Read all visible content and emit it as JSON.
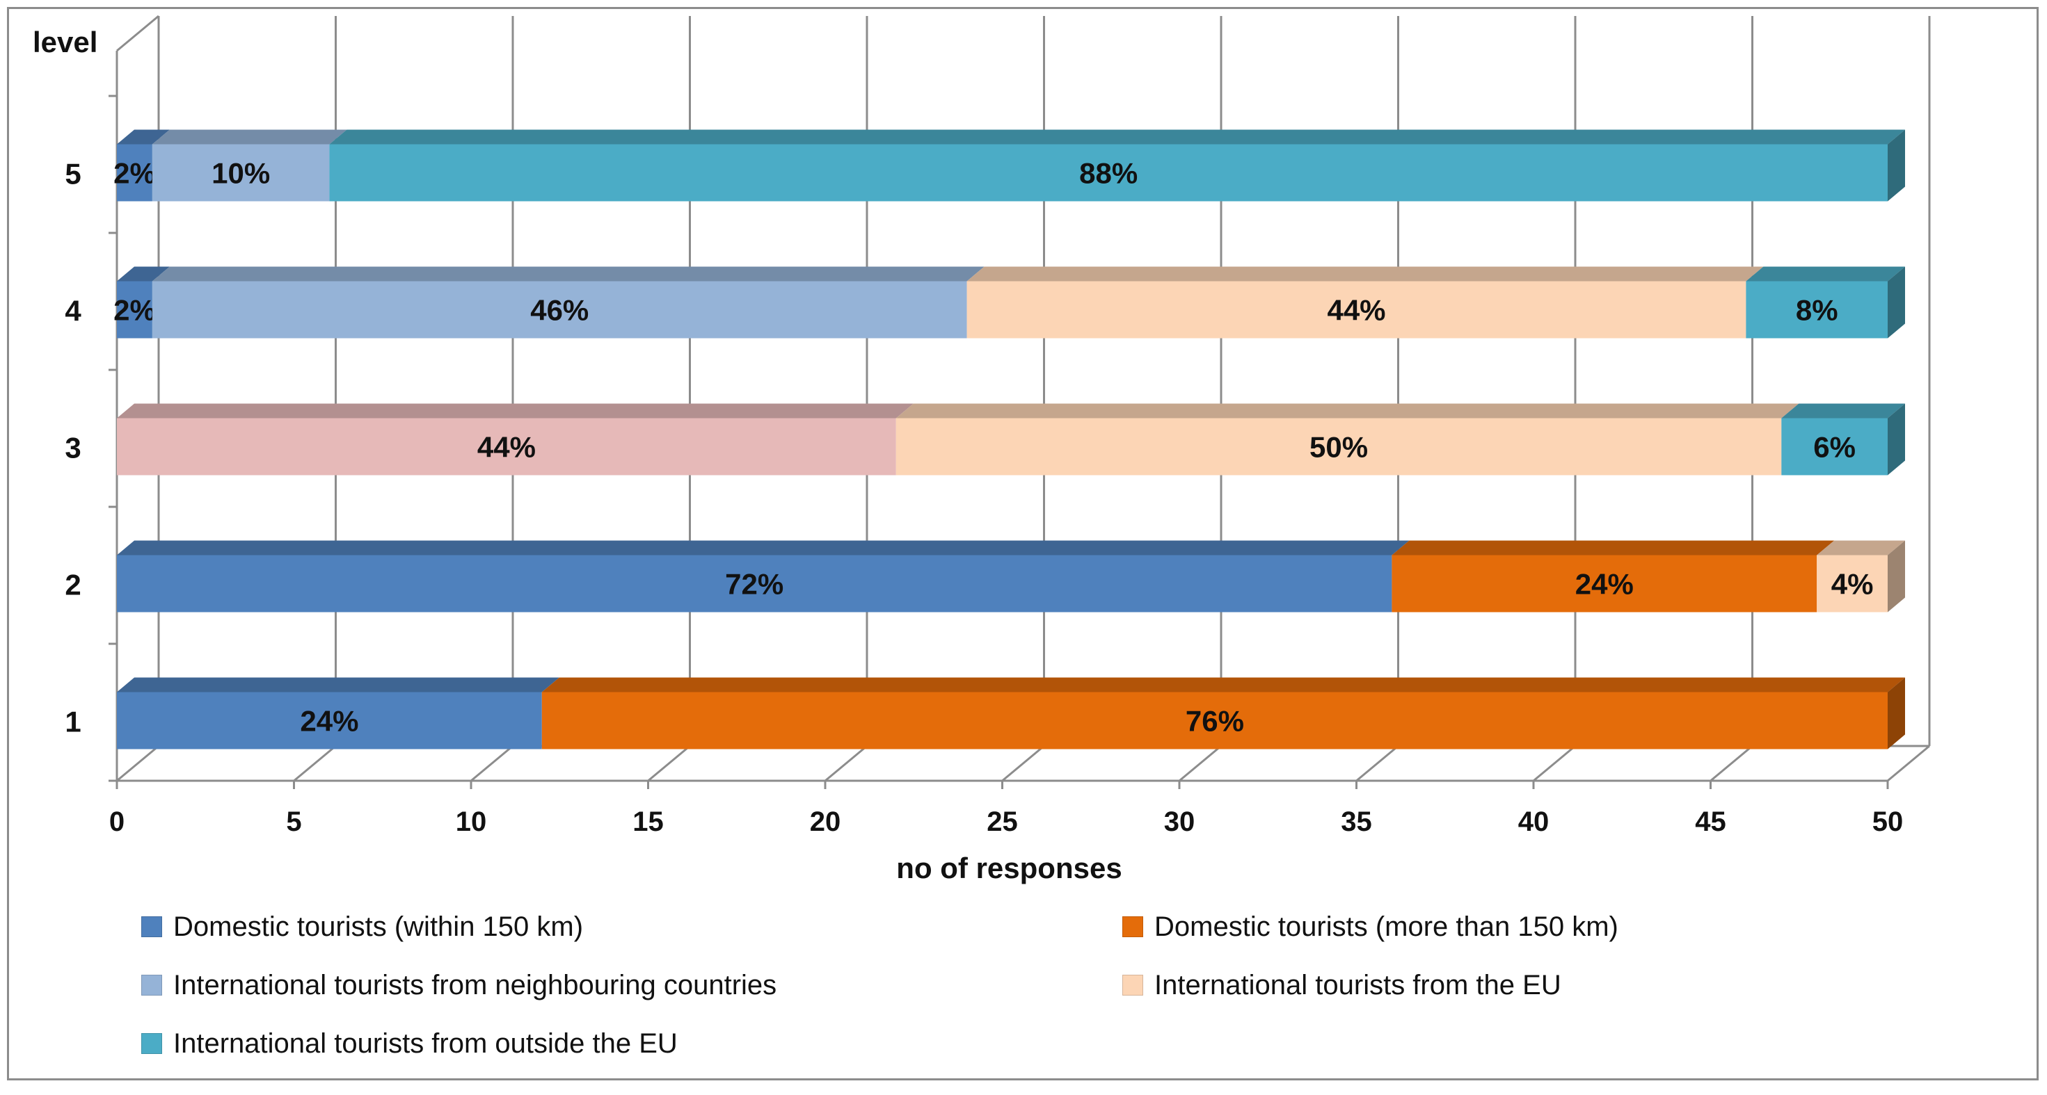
{
  "chart_data": {
    "type": "bar",
    "orientation": "horizontal",
    "stacked": true,
    "style": "3d",
    "categories": [
      "1",
      "2",
      "3",
      "4",
      "5"
    ],
    "ylabel": "level",
    "xlabel": "no of responses",
    "xlim": [
      0,
      50
    ],
    "xticks": [
      "0",
      "5",
      "10",
      "15",
      "20",
      "25",
      "30",
      "35",
      "40",
      "45",
      "50"
    ],
    "grid": true,
    "legend_position": "bottom",
    "series": [
      {
        "name": "Domestic tourists (within 150  km)",
        "color": "#4f81bd",
        "values": [
          12,
          36,
          0,
          1,
          1
        ],
        "labels": [
          "24%",
          "72%",
          "",
          "2%",
          "2%"
        ]
      },
      {
        "name": "Domestic tourists (more than 150  km)",
        "color": "#e46c0a",
        "values": [
          38,
          12,
          0,
          0,
          0
        ],
        "labels": [
          "76%",
          "24%",
          "",
          "",
          ""
        ]
      },
      {
        "name": "",
        "color": "#e6b9b8",
        "values": [
          0,
          0,
          22,
          0,
          0
        ],
        "labels": [
          "",
          "",
          "44%",
          "",
          ""
        ]
      },
      {
        "name": "International tourists from  neighbouring  countries",
        "color": "#95b3d7",
        "values": [
          0,
          0,
          0,
          23,
          5
        ],
        "labels": [
          "",
          "",
          "",
          "46%",
          "10%"
        ]
      },
      {
        "name": "International tourists from the EU",
        "color": "#fcd5b5",
        "values": [
          0,
          2,
          25,
          22,
          0
        ],
        "labels": [
          "",
          "4%",
          "50%",
          "44%",
          ""
        ]
      },
      {
        "name": "International tourists from outside the EU",
        "color": "#4bacc6",
        "values": [
          0,
          0,
          3,
          4,
          44
        ],
        "labels": [
          "",
          "",
          "6%",
          "8%",
          "88%"
        ]
      }
    ]
  },
  "legend": [
    {
      "label": "Domestic tourists (within 150  km)",
      "color": "#4f81bd"
    },
    {
      "label": "Domestic tourists (more than 150  km)",
      "color": "#e46c0a"
    },
    {
      "label": "International tourists from  neighbouring  countries",
      "color": "#95b3d7"
    },
    {
      "label": "International tourists from the EU",
      "color": "#fcd5b5"
    },
    {
      "label": "International tourists from outside the EU",
      "color": "#4bacc6"
    }
  ]
}
